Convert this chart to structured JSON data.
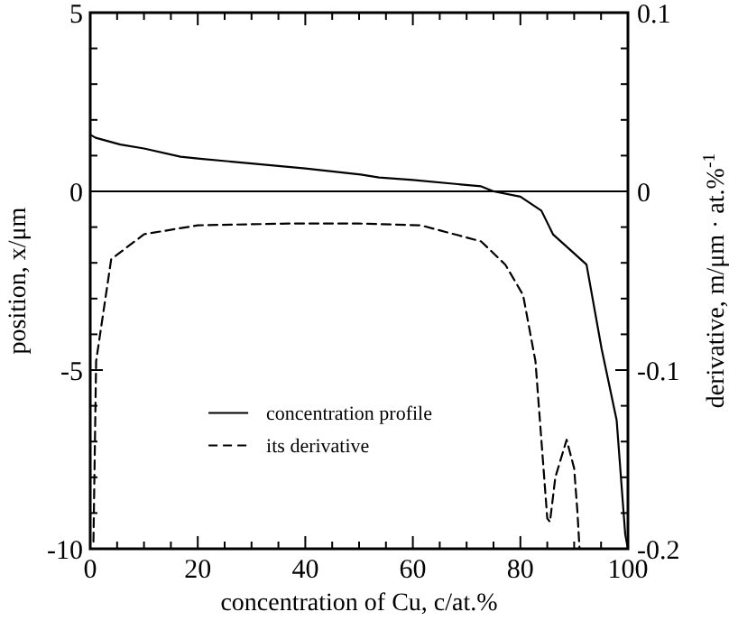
{
  "chart_data": {
    "type": "line",
    "xlabel": "concentration of Cu, c/at.%",
    "ylabel": "position, x/μm",
    "y2label": "derivative, m/μm · at.%$^{-1}$",
    "xlim": [
      0,
      100
    ],
    "ylim": [
      -10,
      5
    ],
    "y2lim": [
      -0.2,
      0.1
    ],
    "xticks": [
      0,
      {
        "value": 5,
        "label": null
      },
      {
        "value": 10,
        "label": null
      },
      {
        "value": 15,
        "label": null
      },
      20,
      {
        "value": 25,
        "label": null
      },
      {
        "value": 30,
        "label": null
      },
      {
        "value": 35,
        "label": null
      },
      40,
      {
        "value": 45,
        "label": null
      },
      {
        "value": 50,
        "label": null
      },
      {
        "value": 55,
        "label": null
      },
      60,
      {
        "value": 65,
        "label": null
      },
      {
        "value": 70,
        "label": null
      },
      {
        "value": 75,
        "label": null
      },
      80,
      {
        "value": 85,
        "label": null
      },
      {
        "value": 90,
        "label": null
      },
      {
        "value": 95,
        "label": null
      },
      100
    ],
    "yticks": [
      -10,
      {
        "value": -9,
        "label": null
      },
      {
        "value": -8,
        "label": null
      },
      {
        "value": -7,
        "label": null
      },
      {
        "value": -6,
        "label": null
      },
      -5,
      {
        "value": -4,
        "label": null
      },
      {
        "value": -3,
        "label": null
      },
      {
        "value": -2,
        "label": null
      },
      {
        "value": -1,
        "label": null
      },
      0,
      {
        "value": 1,
        "label": null
      },
      {
        "value": 2,
        "label": null
      },
      {
        "value": 3,
        "label": null
      },
      {
        "value": 4,
        "label": null
      },
      5
    ],
    "y2ticks": [
      -0.2,
      {
        "value": -0.18,
        "label": null
      },
      {
        "value": -0.16,
        "label": null
      },
      {
        "value": -0.14,
        "label": null
      },
      {
        "value": -0.12,
        "label": null
      },
      -0.1,
      {
        "value": -0.08,
        "label": null
      },
      {
        "value": -0.06,
        "label": null
      },
      {
        "value": -0.04,
        "label": null
      },
      {
        "value": -0.02,
        "label": null
      },
      0,
      {
        "value": 0.02,
        "label": null
      },
      {
        "value": 0.04,
        "label": null
      },
      {
        "value": 0.06,
        "label": null
      },
      {
        "value": 0.08,
        "label": null
      },
      0.1
    ],
    "grid": false,
    "legend": "bottom left",
    "ref_lines": [
      {
        "axis": "y",
        "value": 0,
        "color": "#000000",
        "line_style": "solid"
      }
    ],
    "series": [
      {
        "name": "concentration profile",
        "color": "#000000",
        "line_style": "solid",
        "x": [
          0.2,
          1,
          5.6,
          10,
          16.8,
          20,
          30,
          40,
          50.3,
          53.7,
          60,
          72.7,
          75,
          80,
          83.9,
          86.1,
          89,
          92.3,
          95.1,
          97.9,
          99.5,
          100
        ],
        "values": [
          1.57,
          1.5,
          1.31,
          1.2,
          0.97,
          0.92,
          0.78,
          0.64,
          0.47,
          0.39,
          0.32,
          0.14,
          0,
          -0.15,
          -0.54,
          -1.21,
          -1.6,
          -2.05,
          -4.4,
          -6.4,
          -9.6,
          -10
        ]
      },
      {
        "name": "its derivative",
        "color": "#000000",
        "line_style": "dashed",
        "axis": "y2",
        "x": [
          0.6,
          1.1,
          3.9,
          10,
          20,
          37,
          50,
          61.5,
          72.7,
          77.2,
          80.5,
          82.8,
          85,
          85.5,
          86.5,
          88.6,
          90,
          90.6,
          91
        ],
        "values": [
          -0.196,
          -0.095,
          -0.038,
          -0.024,
          -0.019,
          -0.018,
          -0.018,
          -0.019,
          -0.028,
          -0.041,
          -0.058,
          -0.095,
          -0.183,
          -0.185,
          -0.16,
          -0.139,
          -0.155,
          -0.179,
          -0.2
        ]
      }
    ]
  }
}
